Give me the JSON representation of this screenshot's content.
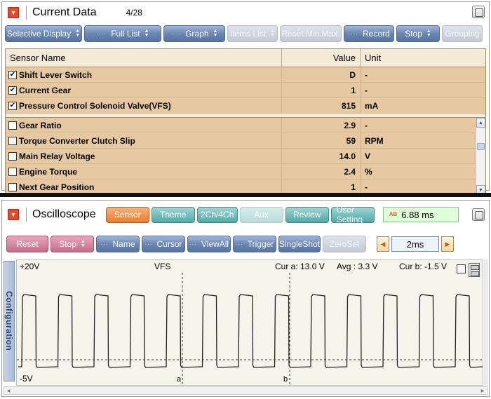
{
  "current_data": {
    "title": "Current Data",
    "count": "4/28",
    "toolbar": [
      {
        "label": "Selective Display",
        "updown": true,
        "dots": false,
        "disabled": false,
        "width": 110
      },
      {
        "label": "Full List",
        "updown": true,
        "dots": true,
        "disabled": false,
        "width": 110
      },
      {
        "label": "Graph",
        "updown": true,
        "dots": true,
        "disabled": false,
        "width": 88
      },
      {
        "label": "Items List",
        "updown": true,
        "dots": false,
        "disabled": true,
        "width": 72
      },
      {
        "label": "Reset Min.Max.",
        "updown": false,
        "dots": false,
        "disabled": true,
        "width": 88
      },
      {
        "label": "Record",
        "updown": false,
        "dots": true,
        "disabled": false,
        "width": 72
      },
      {
        "label": "Stop",
        "updown": true,
        "dots": false,
        "disabled": false,
        "width": 62
      },
      {
        "label": "Grouping",
        "updown": false,
        "dots": false,
        "disabled": true,
        "width": 58
      }
    ],
    "columns": {
      "name": "Sensor Name",
      "value": "Value",
      "unit": "Unit"
    },
    "pinned_rows": [
      {
        "name": "Shift Lever Switch",
        "value": "D",
        "unit": "-",
        "checked": true
      },
      {
        "name": "Current Gear",
        "value": "1",
        "unit": "-",
        "checked": true
      },
      {
        "name": "Pressure Control Solenoid Valve(VFS)",
        "value": "815",
        "unit": "mA",
        "checked": true
      }
    ],
    "rows": [
      {
        "name": "Gear Ratio",
        "value": "2.9",
        "unit": "-",
        "checked": false
      },
      {
        "name": "Torque Converter Clutch Slip",
        "value": "59",
        "unit": "RPM",
        "checked": false
      },
      {
        "name": "Main Relay Voltage",
        "value": "14.0",
        "unit": "V",
        "checked": false
      },
      {
        "name": "Engine Torque",
        "value": "2.4",
        "unit": "%",
        "checked": false
      },
      {
        "name": "Next Gear Position",
        "value": "1",
        "unit": "-",
        "checked": false
      }
    ]
  },
  "oscilloscope": {
    "title": "Oscilloscope",
    "tabs": [
      {
        "label": "Sensor",
        "state": "active"
      },
      {
        "label": "Theme",
        "state": "normal"
      },
      {
        "label": "2Ch/4Ch",
        "state": "normal"
      },
      {
        "label": "Aux",
        "state": "disabled"
      },
      {
        "label": "Review",
        "state": "normal"
      },
      {
        "label": "User Setting",
        "state": "normal"
      }
    ],
    "time_readout": "6.88 ms",
    "time_icon": "AB",
    "toolbar": [
      {
        "label": "Reset",
        "style": "red",
        "dots": false,
        "updown": false
      },
      {
        "label": "Stop",
        "style": "red",
        "dots": false,
        "updown": true
      },
      {
        "label": "Name",
        "style": "blue",
        "dots": true,
        "updown": false
      },
      {
        "label": "Cursor",
        "style": "blue",
        "dots": true,
        "updown": false
      },
      {
        "label": "ViewAll",
        "style": "blue",
        "dots": true,
        "updown": false
      },
      {
        "label": "Trigger",
        "style": "blue",
        "dots": true,
        "updown": false
      },
      {
        "label": "SingleShot",
        "style": "blue",
        "dots": false,
        "updown": false
      },
      {
        "label": "ZeroSet",
        "style": "disabled",
        "dots": false,
        "updown": false
      }
    ],
    "timebase": "2ms",
    "config_label": "Configuration",
    "scope": {
      "top_label": "+20V",
      "bottom_label": "-5V",
      "channel": "VFS",
      "cur_a": "Cur a:  13.0 V",
      "avg": "Avg :  3.3 V",
      "cur_b": "Cur b:  -1.5 V",
      "cursor_a": "a",
      "cursor_b": "b"
    }
  }
}
